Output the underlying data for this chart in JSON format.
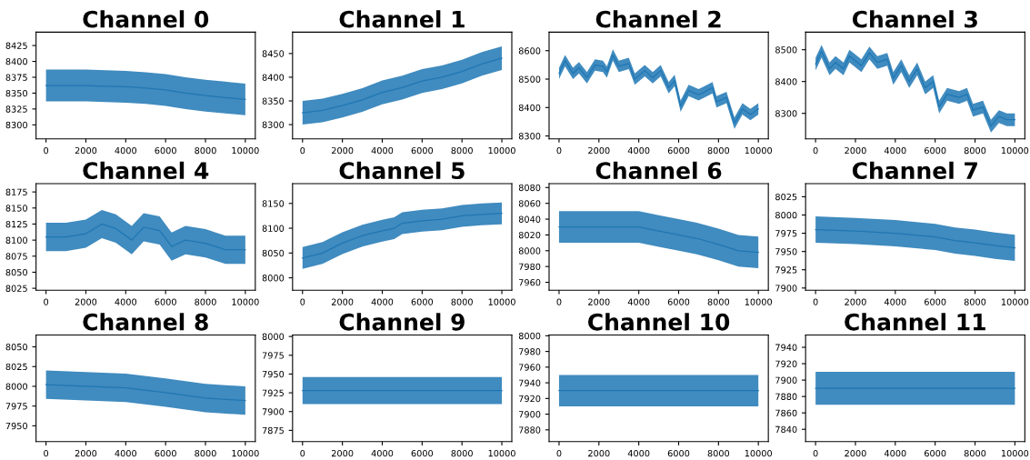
{
  "chart_data": [
    {
      "type": "line",
      "title": "Channel 0",
      "x": [
        0,
        1000,
        2000,
        3000,
        4000,
        5000,
        6000,
        7000,
        8000,
        9000,
        10000
      ],
      "xlim": [
        -500,
        10500
      ],
      "xticks": [
        0,
        2000,
        4000,
        6000,
        8000,
        10000
      ],
      "ylim": [
        8278,
        8446
      ],
      "yticks": [
        8300,
        8325,
        8350,
        8375,
        8400,
        8425
      ],
      "series": [
        {
          "color": "#1f77b4",
          "values": [
            8362,
            8362,
            8362,
            8361,
            8360,
            8358,
            8355,
            8350,
            8346,
            8343,
            8340
          ],
          "lower": [
            8337,
            8337,
            8337,
            8336,
            8335,
            8333,
            8330,
            8325,
            8321,
            8318,
            8315
          ],
          "upper": [
            8387,
            8387,
            8387,
            8386,
            8385,
            8383,
            8380,
            8375,
            8371,
            8368,
            8365
          ]
        }
      ]
    },
    {
      "type": "line",
      "title": "Channel 1",
      "x": [
        0,
        1000,
        2000,
        3000,
        4000,
        5000,
        6000,
        7000,
        8000,
        9000,
        10000
      ],
      "xlim": [
        -500,
        10500
      ],
      "xticks": [
        0,
        2000,
        4000,
        6000,
        8000,
        10000
      ],
      "ylim": [
        8270,
        8495
      ],
      "yticks": [
        8300,
        8350,
        8400,
        8450
      ],
      "series": [
        {
          "color": "#1f77b4",
          "values": [
            8325,
            8330,
            8340,
            8352,
            8368,
            8378,
            8392,
            8400,
            8412,
            8428,
            8440
          ],
          "lower": [
            8300,
            8305,
            8315,
            8327,
            8343,
            8353,
            8367,
            8375,
            8387,
            8403,
            8415
          ],
          "upper": [
            8350,
            8355,
            8365,
            8377,
            8393,
            8403,
            8417,
            8425,
            8437,
            8453,
            8465
          ]
        }
      ]
    },
    {
      "type": "line",
      "title": "Channel 2",
      "x": [
        0,
        300,
        700,
        1000,
        1400,
        1800,
        2200,
        2400,
        2700,
        3000,
        3500,
        3800,
        4300,
        4700,
        5100,
        5500,
        5800,
        6100,
        6500,
        7000,
        7300,
        7700,
        7900,
        8400,
        8800,
        9200,
        9600,
        10000
      ],
      "xlim": [
        -500,
        10500
      ],
      "xticks": [
        0,
        2000,
        4000,
        6000,
        8000,
        10000
      ],
      "ylim": [
        8290,
        8665
      ],
      "yticks": [
        8300,
        8400,
        8500,
        8600
      ],
      "series": [
        {
          "color": "#1f77b4",
          "values": [
            8520,
            8565,
            8520,
            8540,
            8505,
            8550,
            8545,
            8525,
            8585,
            8545,
            8555,
            8500,
            8530,
            8505,
            8530,
            8470,
            8495,
            8405,
            8460,
            8445,
            8455,
            8470,
            8420,
            8435,
            8345,
            8395,
            8375,
            8395
          ],
          "lower": [
            8500,
            8545,
            8500,
            8520,
            8485,
            8530,
            8525,
            8505,
            8565,
            8525,
            8535,
            8480,
            8510,
            8485,
            8510,
            8450,
            8475,
            8385,
            8440,
            8425,
            8435,
            8450,
            8400,
            8415,
            8325,
            8375,
            8355,
            8375
          ],
          "upper": [
            8540,
            8585,
            8540,
            8560,
            8525,
            8570,
            8565,
            8545,
            8605,
            8565,
            8575,
            8520,
            8550,
            8525,
            8550,
            8490,
            8515,
            8425,
            8480,
            8465,
            8475,
            8490,
            8440,
            8455,
            8365,
            8415,
            8395,
            8415
          ]
        }
      ]
    },
    {
      "type": "line",
      "title": "Channel 3",
      "x": [
        0,
        300,
        700,
        1000,
        1400,
        1700,
        2000,
        2300,
        2700,
        3100,
        3600,
        3900,
        4300,
        4700,
        5100,
        5500,
        5900,
        6200,
        6600,
        7200,
        7600,
        7900,
        8400,
        8800,
        9200,
        9600,
        10000
      ],
      "xlim": [
        -500,
        10500
      ],
      "xticks": [
        0,
        2000,
        4000,
        6000,
        8000,
        10000
      ],
      "ylim": [
        8220,
        8555
      ],
      "yticks": [
        8300,
        8400,
        8500
      ],
      "series": [
        {
          "color": "#1f77b4",
          "values": [
            8455,
            8495,
            8440,
            8460,
            8440,
            8480,
            8465,
            8450,
            8490,
            8460,
            8470,
            8410,
            8450,
            8400,
            8440,
            8380,
            8400,
            8320,
            8360,
            8350,
            8360,
            8310,
            8320,
            8260,
            8290,
            8280,
            8280
          ],
          "lower": [
            8435,
            8475,
            8420,
            8440,
            8420,
            8460,
            8445,
            8430,
            8470,
            8440,
            8450,
            8390,
            8430,
            8380,
            8420,
            8360,
            8380,
            8300,
            8340,
            8330,
            8340,
            8290,
            8300,
            8240,
            8270,
            8260,
            8260
          ],
          "upper": [
            8475,
            8515,
            8460,
            8480,
            8460,
            8500,
            8485,
            8470,
            8510,
            8480,
            8490,
            8430,
            8470,
            8420,
            8460,
            8400,
            8420,
            8340,
            8380,
            8370,
            8380,
            8330,
            8340,
            8280,
            8310,
            8300,
            8300
          ]
        }
      ]
    },
    {
      "type": "line",
      "title": "Channel 4",
      "x": [
        0,
        1000,
        2000,
        2800,
        3500,
        4300,
        4900,
        5700,
        6300,
        7000,
        8000,
        9000,
        10000
      ],
      "xlim": [
        -500,
        10500
      ],
      "xticks": [
        0,
        2000,
        4000,
        6000,
        8000,
        10000
      ],
      "ylim": [
        8022,
        8188
      ],
      "yticks": [
        8025,
        8050,
        8075,
        8100,
        8125,
        8150,
        8175
      ],
      "series": [
        {
          "color": "#1f77b4",
          "values": [
            8105,
            8105,
            8110,
            8125,
            8118,
            8100,
            8120,
            8115,
            8090,
            8100,
            8095,
            8085,
            8085
          ],
          "lower": [
            8083,
            8083,
            8088,
            8103,
            8096,
            8078,
            8098,
            8093,
            8068,
            8078,
            8073,
            8063,
            8063
          ],
          "upper": [
            8127,
            8127,
            8132,
            8147,
            8140,
            8122,
            8142,
            8137,
            8112,
            8122,
            8117,
            8107,
            8107
          ]
        }
      ]
    },
    {
      "type": "line",
      "title": "Channel 5",
      "x": [
        0,
        1000,
        2000,
        3000,
        4000,
        4600,
        5000,
        6000,
        7000,
        8000,
        9000,
        10000
      ],
      "xlim": [
        -500,
        10500
      ],
      "xticks": [
        0,
        2000,
        4000,
        6000,
        8000,
        10000
      ],
      "ylim": [
        7975,
        8190
      ],
      "yticks": [
        8000,
        8050,
        8100,
        8150
      ],
      "series": [
        {
          "color": "#1f77b4",
          "values": [
            8040,
            8050,
            8070,
            8085,
            8095,
            8100,
            8110,
            8115,
            8118,
            8125,
            8128,
            8130
          ],
          "lower": [
            8018,
            8028,
            8048,
            8063,
            8073,
            8078,
            8088,
            8093,
            8096,
            8103,
            8106,
            8108
          ],
          "upper": [
            8062,
            8072,
            8092,
            8107,
            8117,
            8122,
            8132,
            8137,
            8140,
            8147,
            8150,
            8152
          ]
        }
      ]
    },
    {
      "type": "line",
      "title": "Channel 6",
      "x": [
        0,
        2000,
        4000,
        5000,
        6000,
        7000,
        8000,
        9000,
        10000
      ],
      "xlim": [
        -500,
        10500
      ],
      "xticks": [
        0,
        2000,
        4000,
        6000,
        8000,
        10000
      ],
      "ylim": [
        7950,
        8085
      ],
      "yticks": [
        7960,
        7980,
        8000,
        8020,
        8040,
        8060,
        8080
      ],
      "series": [
        {
          "color": "#1f77b4",
          "values": [
            8030,
            8030,
            8030,
            8025,
            8020,
            8015,
            8008,
            8000,
            7998
          ],
          "lower": [
            8010,
            8010,
            8010,
            8005,
            8000,
            7995,
            7988,
            7980,
            7978
          ],
          "upper": [
            8050,
            8050,
            8050,
            8045,
            8040,
            8035,
            8028,
            8020,
            8018
          ]
        }
      ]
    },
    {
      "type": "line",
      "title": "Channel 7",
      "x": [
        0,
        2000,
        4000,
        6000,
        7000,
        8000,
        9000,
        10000
      ],
      "xlim": [
        -500,
        10500
      ],
      "xticks": [
        0,
        2000,
        4000,
        6000,
        8000,
        10000
      ],
      "ylim": [
        7897,
        8043
      ],
      "yticks": [
        7900,
        7925,
        7950,
        7975,
        8000,
        8025
      ],
      "series": [
        {
          "color": "#1f77b4",
          "values": [
            7980,
            7978,
            7975,
            7970,
            7965,
            7962,
            7958,
            7955
          ],
          "lower": [
            7962,
            7960,
            7957,
            7952,
            7947,
            7944,
            7940,
            7937
          ],
          "upper": [
            7998,
            7996,
            7993,
            7988,
            7983,
            7980,
            7976,
            7973
          ]
        }
      ]
    },
    {
      "type": "line",
      "title": "Channel 8",
      "x": [
        0,
        2000,
        4000,
        6000,
        8000,
        10000
      ],
      "xlim": [
        -500,
        10500
      ],
      "xticks": [
        0,
        2000,
        4000,
        6000,
        8000,
        10000
      ],
      "ylim": [
        7930,
        8065
      ],
      "yticks": [
        7950,
        7975,
        8000,
        8025,
        8050
      ],
      "series": [
        {
          "color": "#1f77b4",
          "values": [
            8002,
            8000,
            7998,
            7992,
            7985,
            7982
          ],
          "lower": [
            7984,
            7982,
            7980,
            7974,
            7967,
            7964
          ],
          "upper": [
            8020,
            8018,
            8016,
            8010,
            8003,
            8000
          ]
        }
      ]
    },
    {
      "type": "line",
      "title": "Channel 9",
      "x": [
        0,
        5000,
        10000
      ],
      "xlim": [
        -500,
        10500
      ],
      "xticks": [
        0,
        2000,
        4000,
        6000,
        8000,
        10000
      ],
      "ylim": [
        7860,
        8002
      ],
      "yticks": [
        7875,
        7900,
        7925,
        7950,
        7975,
        8000
      ],
      "series": [
        {
          "color": "#1f77b4",
          "values": [
            7928,
            7928,
            7928
          ],
          "lower": [
            7910,
            7910,
            7910
          ],
          "upper": [
            7946,
            7946,
            7946
          ]
        }
      ]
    },
    {
      "type": "line",
      "title": "Channel 10",
      "x": [
        0,
        5000,
        10000
      ],
      "xlim": [
        -500,
        10500
      ],
      "xticks": [
        0,
        2000,
        4000,
        6000,
        8000,
        10000
      ],
      "ylim": [
        7865,
        8001
      ],
      "yticks": [
        7880,
        7900,
        7920,
        7940,
        7960,
        7980,
        8000
      ],
      "series": [
        {
          "color": "#1f77b4",
          "values": [
            7930,
            7930,
            7930
          ],
          "lower": [
            7910,
            7910,
            7910
          ],
          "upper": [
            7950,
            7950,
            7950
          ]
        }
      ]
    },
    {
      "type": "line",
      "title": "Channel 11",
      "x": [
        0,
        5000,
        10000
      ],
      "xlim": [
        -500,
        10500
      ],
      "xticks": [
        0,
        2000,
        4000,
        6000,
        8000,
        10000
      ],
      "ylim": [
        7825,
        7955
      ],
      "yticks": [
        7840,
        7860,
        7880,
        7900,
        7920,
        7940
      ],
      "series": [
        {
          "color": "#1f77b4",
          "values": [
            7890,
            7890,
            7890
          ],
          "lower": [
            7870,
            7870,
            7870
          ],
          "upper": [
            7910,
            7910,
            7910
          ]
        }
      ]
    }
  ]
}
